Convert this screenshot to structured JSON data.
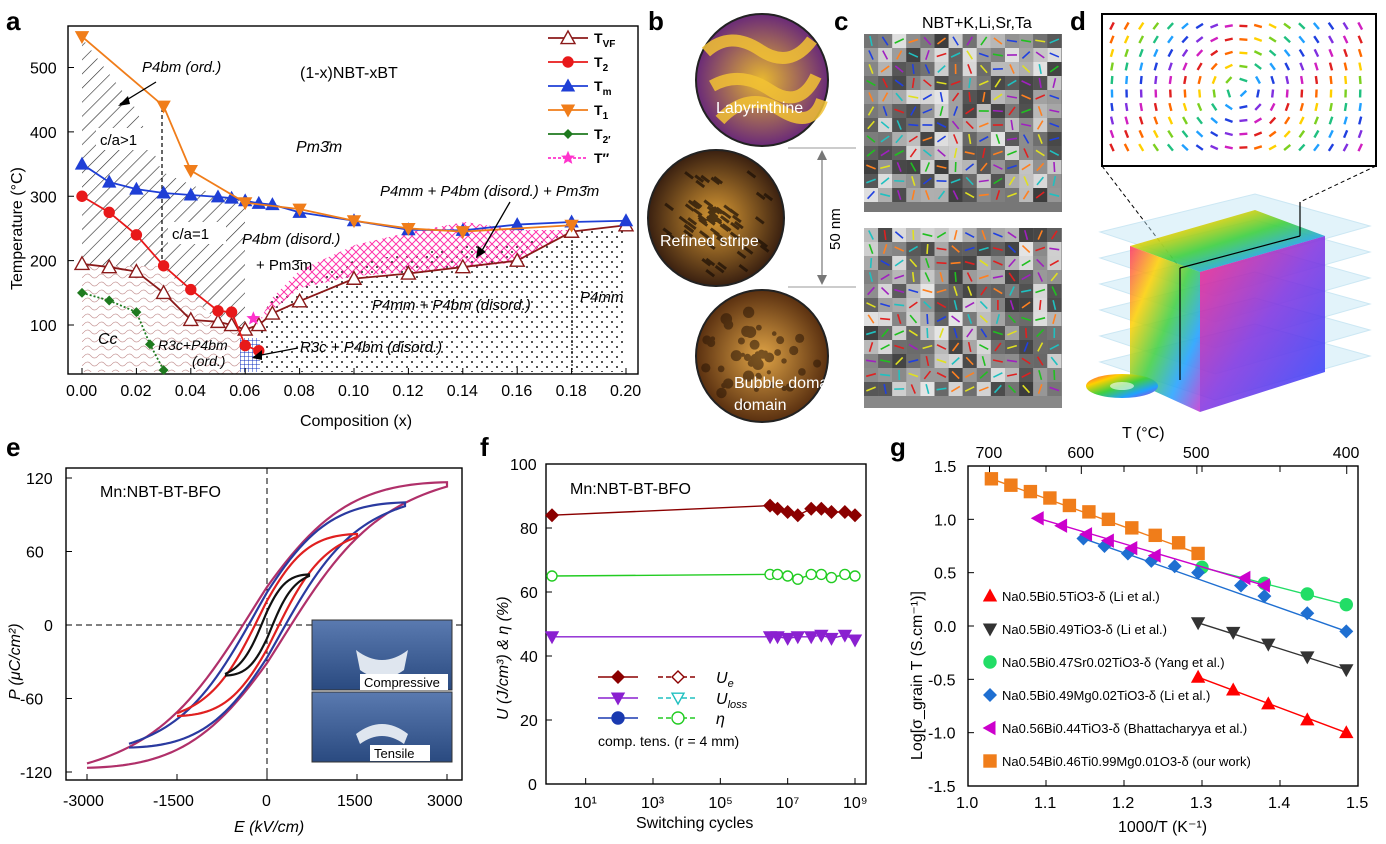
{
  "panel_letters": [
    "a",
    "b",
    "c",
    "d",
    "e",
    "f",
    "g"
  ],
  "panel_a": {
    "title": "(1-x)NBT-xBT",
    "xlabel": "Composition (x)",
    "ylabel": "Temperature (°C)",
    "xticks": [
      "0.00",
      "0.02",
      "0.04",
      "0.06",
      "0.08",
      "0.10",
      "0.12",
      "0.14",
      "0.16",
      "0.18",
      "0.20"
    ],
    "yticks": [
      "100",
      "200",
      "300",
      "400",
      "500"
    ],
    "phase_labels": {
      "p4bm_ord": "P4bm (ord.)",
      "pm3m": "Pm3̄m",
      "ca_gt1": "c/a>1",
      "ca_eq1": "c/a=1",
      "p4bm_disord": "P4bm (disord.)",
      "plus_pm3m": "+ Pm3̄m",
      "p4mm_p4bm_pm3m": "P4mm + P4bm (disord.) + Pm3̄m",
      "p4mm_p4bm": "P4mm + P4bm (disord.)",
      "p4mm": "P4mm",
      "cc": "Cc",
      "r3c_p4bm_ord_1": "R3c+P4bm",
      "r3c_p4bm_ord_2": "(ord.)",
      "r3c_p4bm_disord": "R3c + P4bm (disord.)"
    },
    "legend": [
      "T_VF",
      "T_2",
      "T_m",
      "T_1",
      "T_2′",
      "T″"
    ],
    "colors": {
      "T_VF": "#8b1a1a",
      "T_2": "#e8191a",
      "T_m": "#1f3fd6",
      "T_1": "#f07d1a",
      "T_2p": "#1f7a1f",
      "T_pp": "#ff33cc"
    }
  },
  "panel_b": {
    "labels": [
      "Labyrinthine",
      "Refined stripe",
      "Bubble domain"
    ],
    "scale": "50 nm"
  },
  "panel_c": {
    "title": "NBT+K,Li,Sr,Ta"
  },
  "panel_e": {
    "title": "Mn:NBT-BT-BFO",
    "xlabel": "E (kV/cm)",
    "ylabel": "P (μC/cm²)",
    "xticks": [
      "-3000",
      "-1500",
      "0",
      "1500",
      "3000"
    ],
    "yticks": [
      "120",
      "60",
      "0",
      "-60",
      "-120"
    ],
    "inset_labels": [
      "Compressive",
      "Tensile"
    ]
  },
  "panel_f": {
    "title": "Mn:NBT-BT-BFO",
    "xlabel": "Switching cycles",
    "ylabel": "U (J/cm³) & η (%)",
    "xticks": [
      "10¹",
      "10³",
      "10⁵",
      "10⁷",
      "10⁹"
    ],
    "yticks": [
      "0",
      "20",
      "40",
      "60",
      "80",
      "100"
    ],
    "legend": {
      "ue": "U",
      "ue_sub": "e",
      "uloss": "U",
      "uloss_sub": "loss",
      "eta": "η",
      "footer": "comp.  tens.  (r = 4 mm)"
    }
  },
  "panel_g": {
    "top_label": "T (°C)",
    "top_ticks": [
      "700",
      "600",
      "500",
      "400"
    ],
    "xlabel": "1000/T (K⁻¹)",
    "ylabel": "Log[σ_grain T (S.cm⁻¹)]",
    "xticks": [
      "1.0",
      "1.1",
      "1.2",
      "1.3",
      "1.4",
      "1.5"
    ],
    "yticks": [
      "1.5",
      "1.0",
      "0.5",
      "0.0",
      "-0.5",
      "-1.0",
      "-1.5"
    ],
    "legend": [
      "Na0.5Bi0.5TiO3-δ (Li et al.)",
      "Na0.5Bi0.49TiO3-δ (Li et al.)",
      "Na0.5Bi0.47Sr0.02TiO3-δ (Yang et al.)",
      "Na0.5Bi0.49Mg0.02TiO3-δ (Li et al.)",
      "Na0.56Bi0.44TiO3-δ (Bhattacharyya et al.)",
      "Na0.54Bi0.46Ti0.99Mg0.01O3-δ (our work)"
    ],
    "colors": [
      "#ff0000",
      "#333333",
      "#22dd66",
      "#1f6fd1",
      "#cc00cc",
      "#f07d1a"
    ]
  },
  "chart_data": [
    {
      "type": "line",
      "panel": "a",
      "xlabel": "Composition (x)",
      "ylabel": "Temperature (°C)",
      "xlim": [
        0,
        0.2
      ],
      "ylim": [
        30,
        570
      ],
      "series": [
        {
          "name": "T_VF",
          "x": [
            0,
            0.01,
            0.02,
            0.03,
            0.04,
            0.05,
            0.055,
            0.06,
            0.065,
            0.07,
            0.08,
            0.1,
            0.12,
            0.14,
            0.16,
            0.18,
            0.2
          ],
          "y": [
            195,
            190,
            183,
            150,
            108,
            105,
            100,
            93,
            100,
            118,
            137,
            172,
            180,
            190,
            200,
            245,
            255
          ]
        },
        {
          "name": "T_2",
          "x": [
            0,
            0.01,
            0.02,
            0.03,
            0.04,
            0.05,
            0.055,
            0.06,
            0.065
          ],
          "y": [
            300,
            275,
            240,
            192,
            155,
            122,
            120,
            68,
            60
          ]
        },
        {
          "name": "T_m",
          "x": [
            0,
            0.01,
            0.02,
            0.03,
            0.04,
            0.05,
            0.055,
            0.06,
            0.065,
            0.07,
            0.08,
            0.1,
            0.12,
            0.14,
            0.16,
            0.18,
            0.2
          ],
          "y": [
            350,
            322,
            311,
            305,
            302,
            299,
            297,
            293,
            289,
            287,
            275,
            262,
            248,
            247,
            256,
            260,
            262
          ]
        },
        {
          "name": "T_1",
          "x": [
            0,
            0.03,
            0.04,
            0.06,
            0.08,
            0.1,
            0.12,
            0.14,
            0.18
          ],
          "y": [
            548,
            440,
            340,
            290,
            280,
            262,
            250,
            245,
            255
          ]
        },
        {
          "name": "T_2′",
          "x": [
            0,
            0.01,
            0.02,
            0.025,
            0.03
          ],
          "y": [
            150,
            138,
            120,
            70,
            30
          ]
        },
        {
          "name": "T″",
          "x": [
            0.063
          ],
          "y": [
            110
          ]
        }
      ]
    },
    {
      "type": "line",
      "panel": "e",
      "xlabel": "E (kV/cm)",
      "ylabel": "P (μC/cm²)",
      "xlim": [
        -3300,
        3300
      ],
      "ylim": [
        -130,
        130
      ],
      "series": [
        {
          "name": "loop-3000",
          "amplitude": 3000,
          "pmax": 113
        },
        {
          "name": "loop-2300",
          "amplitude": 2300,
          "pmax": 97
        },
        {
          "name": "loop-1500",
          "amplitude": 1500,
          "pmax": 72
        },
        {
          "name": "loop-700",
          "amplitude": 700,
          "pmax": 40
        }
      ]
    },
    {
      "type": "scatter",
      "panel": "f",
      "xlabel": "Switching cycles",
      "ylabel": "U (J/cm³) & η (%)",
      "xscale": "log",
      "xlim": [
        1,
        1500000000.0
      ],
      "ylim": [
        0,
        100
      ],
      "series": [
        {
          "name": "U_e",
          "x": [
            1,
            3000000.0,
            5000000.0,
            10000000.0,
            20000000.0,
            50000000.0,
            100000000.0,
            200000000.0,
            500000000.0,
            1000000000.0
          ],
          "y": [
            84,
            87,
            86,
            85,
            84,
            86,
            86,
            85,
            85,
            84
          ]
        },
        {
          "name": "η",
          "x": [
            1,
            3000000.0,
            5000000.0,
            10000000.0,
            20000000.0,
            50000000.0,
            100000000.0,
            200000000.0,
            500000000.0,
            1000000000.0
          ],
          "y": [
            65,
            65.5,
            65.5,
            65,
            64,
            65.5,
            65.5,
            64.5,
            65.5,
            65
          ]
        },
        {
          "name": "U_loss",
          "x": [
            1,
            3000000.0,
            5000000.0,
            10000000.0,
            20000000.0,
            50000000.0,
            100000000.0,
            200000000.0,
            500000000.0,
            1000000000.0
          ],
          "y": [
            46,
            46,
            46,
            45.5,
            46,
            46,
            46.5,
            45.5,
            46.5,
            45
          ]
        }
      ]
    },
    {
      "type": "line",
      "panel": "g",
      "xlabel": "1000/T (K⁻¹)",
      "ylabel": "Log[σ_grain T (S.cm⁻¹)]",
      "xlim": [
        1.0,
        1.5
      ],
      "ylim": [
        -1.5,
        1.5
      ],
      "series": [
        {
          "name": "Na0.5Bi0.5TiO3-δ (Li et al.)",
          "x": [
            1.295,
            1.34,
            1.385,
            1.435,
            1.485
          ],
          "y": [
            -0.48,
            -0.6,
            -0.73,
            -0.88,
            -1.0
          ]
        },
        {
          "name": "Na0.5Bi0.49TiO3-δ (Li et al.)",
          "x": [
            1.295,
            1.34,
            1.385,
            1.435,
            1.485
          ],
          "y": [
            0.03,
            -0.06,
            -0.17,
            -0.29,
            -0.41
          ]
        },
        {
          "name": "Na0.5Bi0.47Sr0.02TiO3-δ (Yang et al.)",
          "x": [
            1.3,
            1.38,
            1.435,
            1.485
          ],
          "y": [
            0.55,
            0.4,
            0.3,
            0.2
          ]
        },
        {
          "name": "Na0.5Bi0.49Mg0.02TiO3-δ (Li et al.)",
          "x": [
            1.148,
            1.175,
            1.205,
            1.235,
            1.265,
            1.295,
            1.35,
            1.38,
            1.435,
            1.485
          ],
          "y": [
            0.82,
            0.75,
            0.68,
            0.61,
            0.56,
            0.5,
            0.38,
            0.28,
            0.12,
            -0.05
          ]
        },
        {
          "name": "Na0.56Bi0.44TiO3-δ (Bhattacharyya et al.)",
          "x": [
            1.09,
            1.12,
            1.152,
            1.18,
            1.21,
            1.24,
            1.355,
            1.38
          ],
          "y": [
            1.01,
            0.94,
            0.86,
            0.8,
            0.73,
            0.66,
            0.45,
            0.38
          ]
        },
        {
          "name": "Na0.54Bi0.46Ti0.99Mg0.01O3-δ (our work)",
          "x": [
            1.03,
            1.055,
            1.08,
            1.105,
            1.13,
            1.155,
            1.18,
            1.21,
            1.24,
            1.27,
            1.295
          ],
          "y": [
            1.38,
            1.32,
            1.26,
            1.2,
            1.13,
            1.07,
            1.0,
            0.92,
            0.85,
            0.78,
            0.68
          ]
        }
      ]
    }
  ]
}
